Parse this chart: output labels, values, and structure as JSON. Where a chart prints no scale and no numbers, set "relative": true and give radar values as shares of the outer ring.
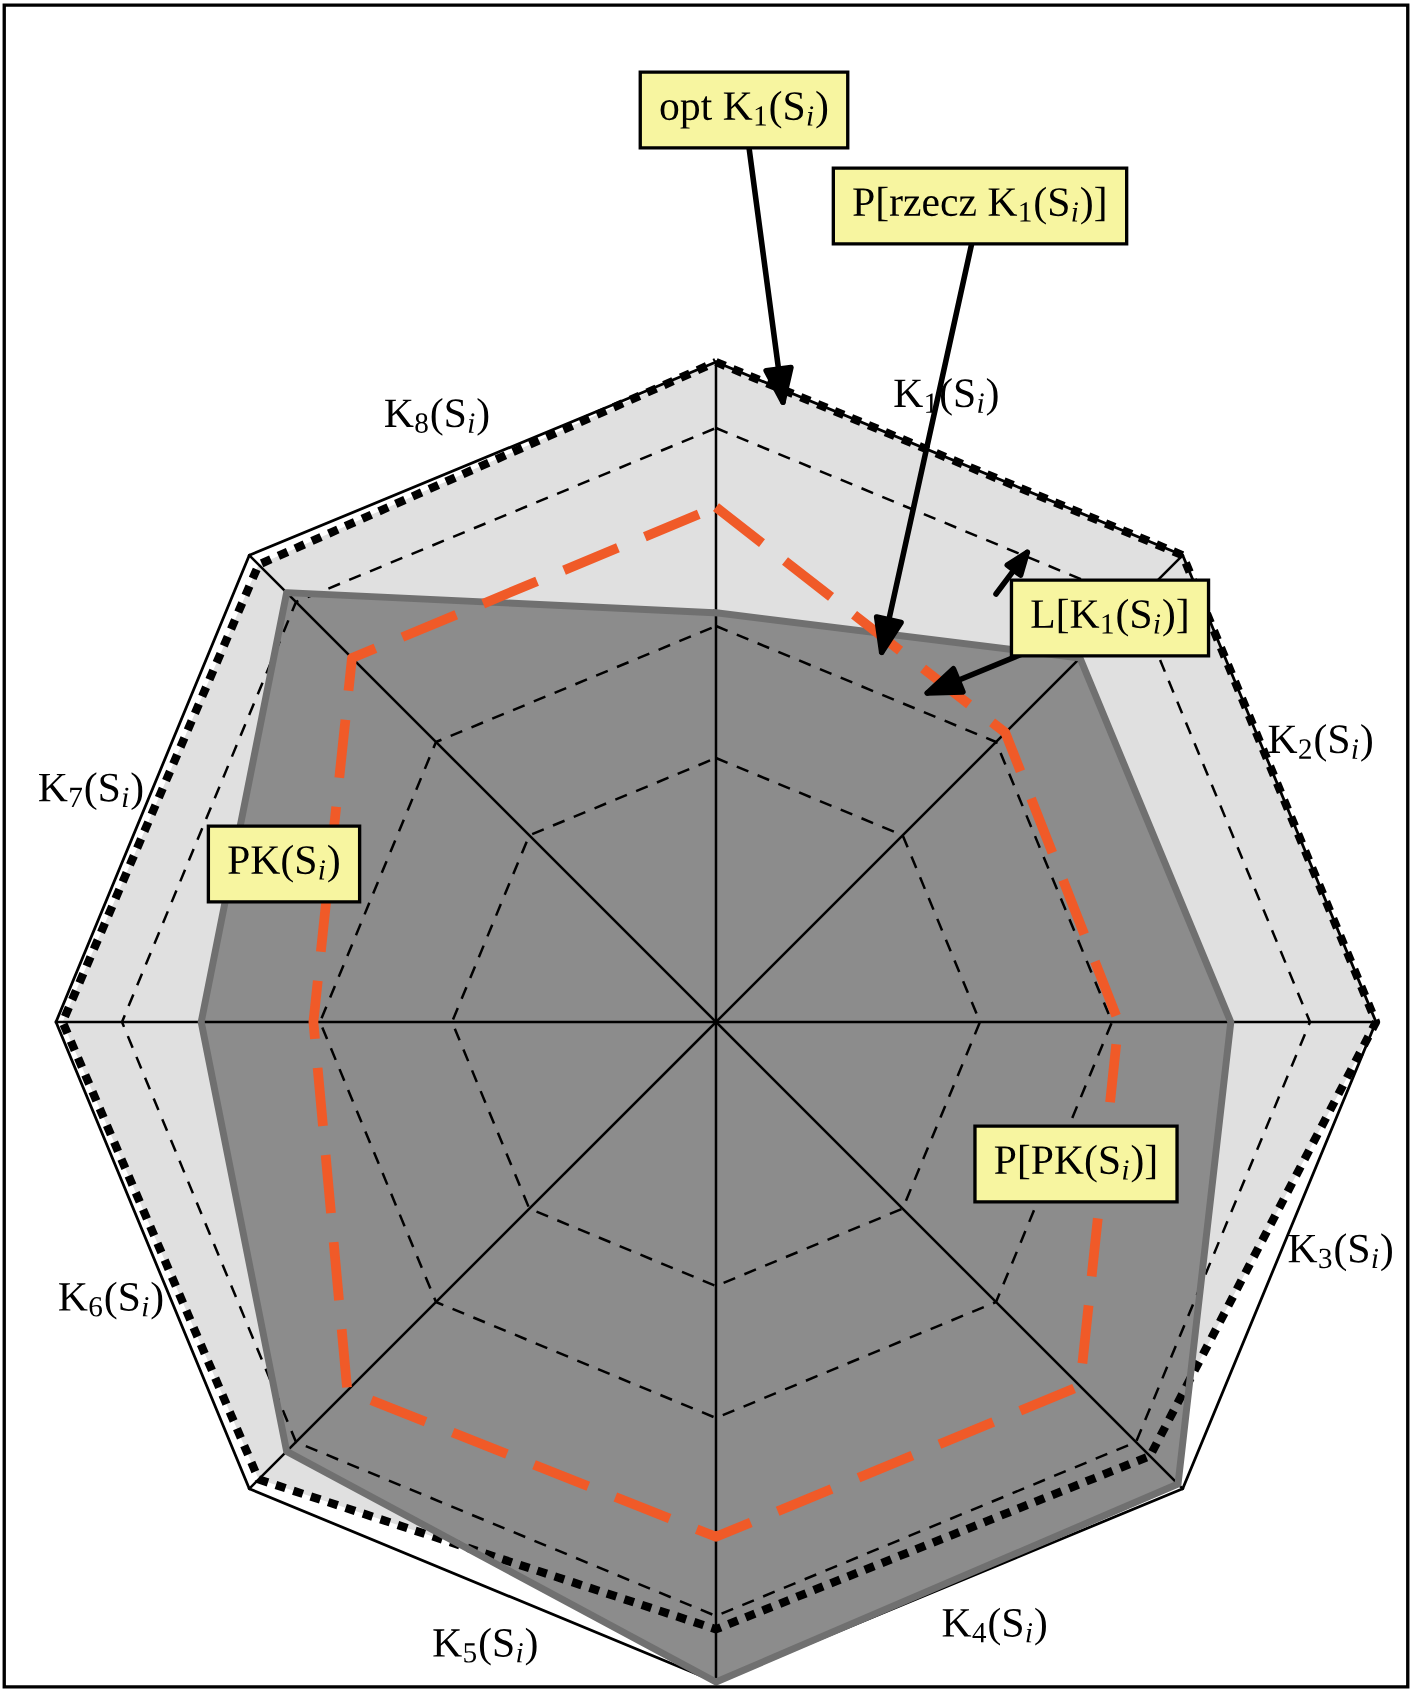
{
  "chart_data": {
    "type": "radar",
    "relative": true,
    "grid": true,
    "categories": [
      "K$_{1}$(S$_{i}$)",
      "K$_{2}$(S$_{i}$)",
      "K$_{3}$(S$_{i}$)",
      "K$_{4}$(S$_{i}$)",
      "K$_{5}$(S$_{i}$)",
      "K$_{6}$(S$_{i}$)",
      "K$_{7}$(S$_{i}$)",
      "K$_{8}$(S$_{i}$)"
    ],
    "series": [
      {
        "color": "#e0e0e0",
        "line_style": "dotted",
        "values": [
          1.0,
          1.0,
          1.0,
          0.93,
          0.92,
          0.98,
          0.99,
          0.98
        ]
      },
      {
        "color": "#8c8c8c",
        "line_style": "solid",
        "values": [
          0.62,
          0.78,
          0.78,
          0.99,
          1.0,
          0.92,
          0.78,
          0.92
        ]
      },
      {
        "color": "#f05a28",
        "line_style": "dashed",
        "values": [
          0.78,
          0.62,
          0.61,
          0.78,
          0.78,
          0.79,
          0.61,
          0.78
        ]
      }
    ],
    "annotations": [
      "opt K$_{1}$(S$_{i}$)",
      "P[rzecz K$_{1}$(S$_{i}$)]",
      "L[K$_{1}$(S$_{i}$)]",
      "PK(S$_{i}$)",
      "P[PK(S$_{i}$)]"
    ]
  }
}
